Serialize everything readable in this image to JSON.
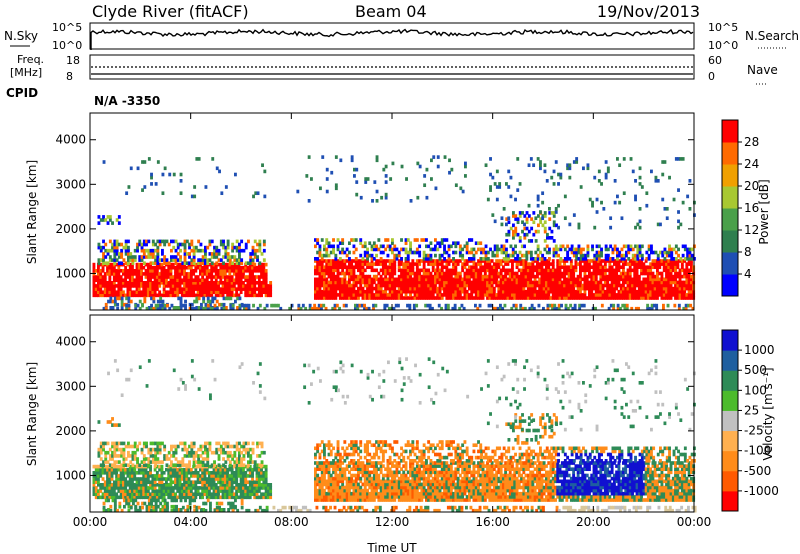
{
  "header": {
    "station": "Clyde River (fitACF)",
    "beam": "Beam 04",
    "date": "19/Nov/2013"
  },
  "strip_plots": {
    "nsky": {
      "label": "N.Sky",
      "ticks": [
        "10^5",
        "10^0"
      ],
      "right_label": "N.Search",
      "right_ticks": [
        "10^5",
        "10^0"
      ]
    },
    "freq": {
      "label_top": "Freq.",
      "label_bottom": "[MHz]",
      "ticks": [
        "18",
        "8"
      ],
      "right_label": "Nave",
      "right_ticks": [
        "60",
        "0"
      ]
    },
    "cpid": {
      "label": "CPID",
      "value": "N/A -3350"
    }
  },
  "colors": {
    "power": [
      "#0000ff",
      "#1f4fb3",
      "#2f7f4f",
      "#4aa04a",
      "#a8c832",
      "#f0a000",
      "#ff6a00",
      "#ff0000"
    ],
    "velocity": [
      "#ff0000",
      "#ff5a00",
      "#ff8c1a",
      "#ffb050",
      "#c0c0c0",
      "#4cbb2c",
      "#2e8b57",
      "#1f5f9f",
      "#1010d0"
    ]
  },
  "chart_data": [
    {
      "type": "heatmap",
      "name": "power",
      "xlabel": "Time UT",
      "ylabel": "Slant Range [km]",
      "x_ticks": [
        "00:00",
        "04:00",
        "08:00",
        "12:00",
        "16:00",
        "20:00",
        "00:00"
      ],
      "xlim": [
        0,
        24
      ],
      "ylim": [
        180,
        4600
      ],
      "y_ticks": [
        "1000",
        "2000",
        "3000",
        "4000"
      ],
      "y_tick_values": [
        1000,
        2000,
        3000,
        4000
      ],
      "colorbar_label": "Power [dB]",
      "colorbar_ticks": [
        "4",
        "8",
        "12",
        "16",
        "20",
        "24",
        "28"
      ],
      "colorbar_range": [
        0,
        32
      ]
    },
    {
      "type": "heatmap",
      "name": "velocity",
      "xlabel": "Time UT",
      "ylabel": "Slant Range [km]",
      "x_ticks": [
        "00:00",
        "04:00",
        "08:00",
        "12:00",
        "16:00",
        "20:00",
        "00:00"
      ],
      "xlim": [
        0,
        24
      ],
      "ylim": [
        180,
        4600
      ],
      "y_ticks": [
        "1000",
        "2000",
        "3000",
        "4000"
      ],
      "y_tick_values": [
        1000,
        2000,
        3000,
        4000
      ],
      "colorbar_label": "Velocity [m s⁻¹]",
      "colorbar_ticks": [
        "1000",
        "500",
        "100",
        "25",
        "-25",
        "-100",
        "-500",
        "-1000"
      ]
    }
  ]
}
